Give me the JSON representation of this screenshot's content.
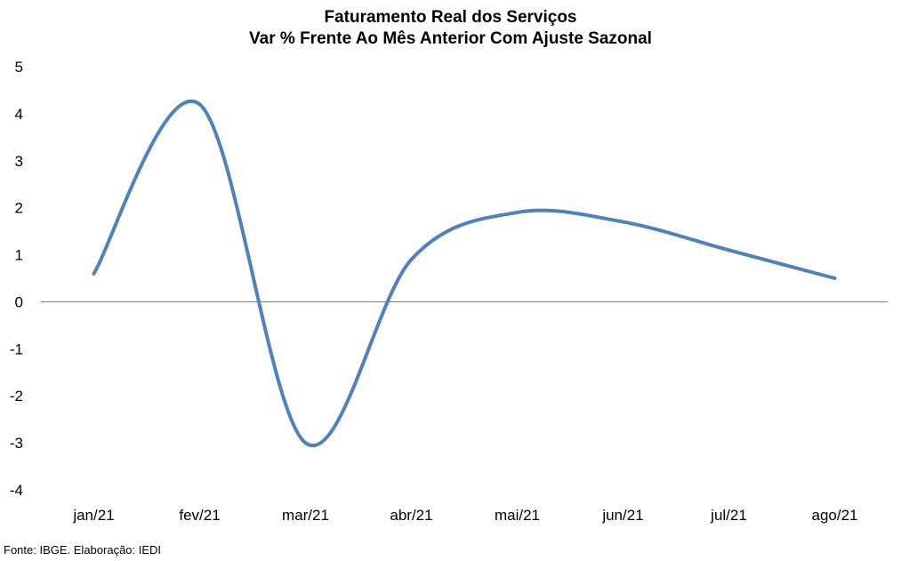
{
  "chart_data": {
    "type": "line",
    "title": "Faturamento Real dos Serviços",
    "subtitle": "Var % Frente Ao Mês Anterior Com Ajuste Sazonal",
    "categories": [
      "jan/21",
      "fev/21",
      "mar/21",
      "abr/21",
      "mai/21",
      "jun/21",
      "jul/21",
      "ago/21"
    ],
    "series": [
      {
        "values": [
          0.6,
          4.2,
          -3.0,
          0.9,
          1.9,
          1.7,
          1.1,
          0.5
        ],
        "color": "#4f81bd"
      }
    ],
    "ylim": [
      -4,
      5
    ],
    "yticks": [
      "5",
      "4",
      "3",
      "2",
      "1",
      "0",
      "-1",
      "-2",
      "-3",
      "-4"
    ],
    "ytick_values": [
      5,
      4,
      3,
      2,
      1,
      0,
      -1,
      -2,
      -3,
      -4
    ],
    "grid": false,
    "legend": "none",
    "zero_line_color": "#808080"
  },
  "footer": {
    "source": "Fonte: IBGE. Elaboração: IEDI"
  }
}
